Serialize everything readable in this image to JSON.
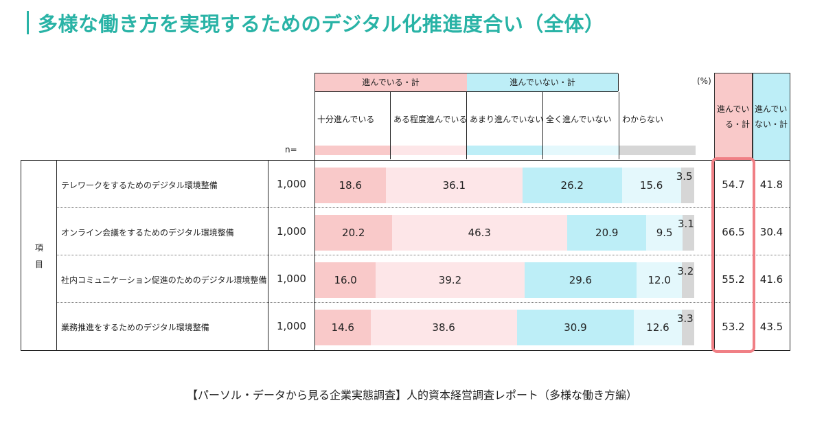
{
  "title": "多様な働き方を実現するためのデジタル化推進度合い（全体）",
  "source": "【パーソル・データから見る企業実態調査】人的資本経営調査レポート（多様な働き方編）",
  "header": {
    "group_progress": "進んでいる・計",
    "group_not_progress": "進んでいない・計",
    "unit": "(%)",
    "n_label": "n=",
    "row_group_label_1": "項",
    "row_group_label_2": "目",
    "sum_progress_line1": "進んでい",
    "sum_progress_line2": "る・計",
    "sum_not_line1": "進んでい",
    "sum_not_line2": "ない・計"
  },
  "colors": {
    "fully": "#f9c9c9",
    "somewhat": "#fde6e8",
    "notmuch": "#bdeef7",
    "notatall": "#e4f8fc",
    "unknown": "#d6d6d6",
    "title": "#29b3a6",
    "highlight": "#f07f85"
  },
  "chart_data": {
    "type": "bar",
    "stacked": true,
    "orientation": "horizontal",
    "unit": "(%)",
    "categories": [
      "テレワークをするためのデジタル環境整備",
      "オンライン会議をするためのデジタル環境整備",
      "社内コミュニケーション促進のためのデジタル環境整備",
      "業務推進をするためのデジタル環境整備"
    ],
    "n": [
      "1,000",
      "1,000",
      "1,000",
      "1,000"
    ],
    "series": [
      {
        "name": "十分進んでいる",
        "values": [
          18.6,
          20.2,
          16.0,
          14.6
        ]
      },
      {
        "name": "ある程度進んでいる",
        "values": [
          36.1,
          46.3,
          39.2,
          38.6
        ]
      },
      {
        "name": "あまり進んでいない",
        "values": [
          26.2,
          20.9,
          29.6,
          30.9
        ]
      },
      {
        "name": "全く進んでいない",
        "values": [
          15.6,
          9.5,
          12.0,
          12.6
        ]
      },
      {
        "name": "わからない",
        "values": [
          3.5,
          3.1,
          3.2,
          3.3
        ]
      }
    ],
    "totals": {
      "progress": [
        54.7,
        66.5,
        55.2,
        53.2
      ],
      "not_progress": [
        41.8,
        30.4,
        41.6,
        43.5
      ]
    }
  }
}
